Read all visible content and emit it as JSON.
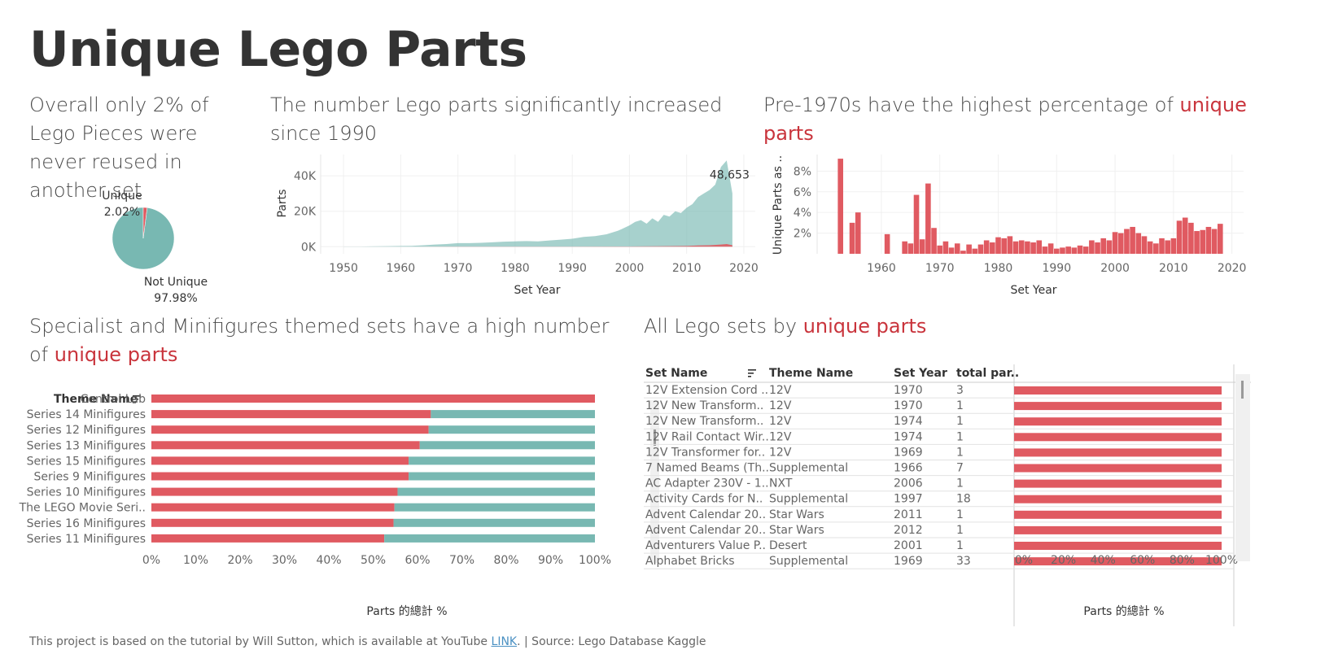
{
  "page": {
    "title": "Unique Lego Parts",
    "footer": {
      "text_before": "This project is based on the tutorial by Will Sutton, which is available at YouTube",
      "link": "LINK",
      "text_after": ".  |  Source: Lego Database Kaggle"
    }
  },
  "colors": {
    "unique": "#e05a61",
    "not_unique": "#78b8b2",
    "accent_text": "#c9343c"
  },
  "headings": {
    "pie": "Overall only 2% of Lego Pieces were never reused in another set",
    "area": "The number Lego parts significantly increased since 1990",
    "pct_pre": "Pre-1970s have the highest percentage of ",
    "pct_accent": "unique parts",
    "themes_pre": "Specialist and Minifigures themed sets have a high number of ",
    "themes_accent": "unique parts",
    "sets_pre": "All Lego sets by ",
    "sets_accent": "unique parts"
  },
  "chart_data": [
    {
      "type": "pie",
      "slices": [
        {
          "label": "Unique",
          "value": 2.02,
          "display": "2.02%",
          "color": "#e05a61"
        },
        {
          "label": "Not Unique",
          "value": 97.98,
          "display": "97.98%",
          "color": "#78b8b2"
        }
      ]
    },
    {
      "type": "area",
      "xlabel": "Set Year",
      "ylabel": "Parts",
      "xticks": [
        1950,
        1960,
        1970,
        1980,
        1990,
        2000,
        2010,
        2020
      ],
      "yticks": [
        {
          "v": 0,
          "label": "0K"
        },
        {
          "v": 20000,
          "label": "20K"
        },
        {
          "v": 40000,
          "label": "40K"
        }
      ],
      "xlim": [
        1946,
        2022
      ],
      "ylim": [
        -4000,
        52000
      ],
      "annotation": "48,653",
      "series": [
        {
          "color": "#78b8b2",
          "x": [
            1950,
            1953,
            1955,
            1958,
            1960,
            1962,
            1964,
            1966,
            1968,
            1970,
            1972,
            1974,
            1976,
            1978,
            1980,
            1982,
            1984,
            1986,
            1988,
            1990,
            1992,
            1994,
            1996,
            1998,
            2000,
            2001,
            2002,
            2003,
            2004,
            2005,
            2006,
            2007,
            2008,
            2009,
            2010,
            2011,
            2012,
            2013,
            2014,
            2015,
            2016,
            2017,
            2018
          ],
          "values": [
            50,
            100,
            200,
            300,
            400,
            500,
            800,
            1200,
            1500,
            2000,
            2000,
            2200,
            2500,
            2800,
            3000,
            3200,
            3000,
            3500,
            4000,
            4500,
            5500,
            6000,
            7000,
            9000,
            12000,
            14000,
            15000,
            13000,
            16000,
            14000,
            18000,
            17000,
            20000,
            19000,
            22000,
            24000,
            28000,
            30000,
            32000,
            35000,
            45000,
            48653,
            30000
          ]
        },
        {
          "color": "#e05a61",
          "x": [
            1950,
            1960,
            1970,
            1980,
            1990,
            2000,
            2005,
            2010,
            2012,
            2014,
            2016,
            2017,
            2018
          ],
          "values": [
            0,
            0,
            100,
            50,
            100,
            150,
            250,
            400,
            700,
            800,
            1200,
            1500,
            800
          ]
        }
      ]
    },
    {
      "type": "bar",
      "xlabel": "Set Year",
      "ylabel": "Unique Parts as ..",
      "xticks": [
        1960,
        1970,
        1980,
        1990,
        2000,
        2010,
        2020
      ],
      "yticks": [
        2,
        4,
        6,
        8
      ],
      "ytick_suffix": "%",
      "xlim": [
        1949,
        2022
      ],
      "ylim": [
        0,
        9.6
      ],
      "color": "#e05a61",
      "years": [
        1953,
        1955,
        1956,
        1957,
        1961,
        1963,
        1964,
        1965,
        1966,
        1967,
        1968,
        1969,
        1970,
        1971,
        1972,
        1973,
        1974,
        1975,
        1976,
        1977,
        1978,
        1979,
        1980,
        1981,
        1982,
        1983,
        1984,
        1985,
        1986,
        1987,
        1988,
        1989,
        1990,
        1991,
        1992,
        1993,
        1994,
        1995,
        1996,
        1997,
        1998,
        1999,
        2000,
        2001,
        2002,
        2003,
        2004,
        2005,
        2006,
        2007,
        2008,
        2009,
        2010,
        2011,
        2012,
        2013,
        2014,
        2015,
        2016,
        2017,
        2018
      ],
      "values": [
        9.2,
        3.0,
        4.0,
        0.0,
        1.9,
        0.0,
        1.2,
        1.0,
        5.7,
        1.4,
        6.8,
        2.5,
        0.8,
        1.2,
        0.6,
        1.0,
        0.3,
        0.9,
        0.5,
        0.9,
        1.3,
        1.1,
        1.6,
        1.5,
        1.7,
        1.2,
        1.3,
        1.2,
        1.1,
        1.3,
        0.7,
        1.0,
        0.5,
        0.6,
        0.7,
        0.6,
        0.8,
        0.7,
        1.3,
        1.1,
        1.5,
        1.3,
        2.1,
        2.0,
        2.4,
        2.6,
        2.0,
        1.7,
        1.2,
        1.0,
        1.5,
        1.3,
        1.5,
        3.2,
        3.5,
        3.0,
        2.2,
        2.3,
        2.6,
        2.4,
        2.9
      ]
    },
    {
      "type": "bar",
      "orientation": "horizontal-stacked-100",
      "ylabel": "Theme Name",
      "xlabel": "Parts 的總計 %",
      "xticks": [
        "0%",
        "10%",
        "20%",
        "30%",
        "40%",
        "50%",
        "60%",
        "70%",
        "80%",
        "90%",
        "100%"
      ],
      "categories": [
        "Control Lab",
        "Series 14 Minifigures",
        "Series 12 Minifigures",
        "Series 13 Minifigures",
        "Series 15 Minifigures",
        "Series 9 Minifigures",
        "Series 10 Minifigures",
        "The LEGO Movie Seri..",
        "Series 16 Minifigures",
        "Series 11 Minifigures"
      ],
      "series": [
        {
          "color": "#e05a61",
          "values": [
            100,
            63,
            62.5,
            60.5,
            58,
            58,
            55.5,
            54.8,
            54.6,
            52.5
          ]
        },
        {
          "color": "#78b8b2",
          "values": [
            0,
            37,
            37.5,
            39.5,
            42,
            42,
            44.5,
            45.2,
            45.4,
            47.5
          ]
        }
      ]
    },
    {
      "type": "table",
      "columns": [
        "Set Name",
        "Theme Name",
        "Set Year",
        "total par.."
      ],
      "rows": [
        [
          "12V Extension Cord ..",
          "12V",
          "1970",
          "3"
        ],
        [
          "12V New Transform..",
          "12V",
          "1970",
          "1"
        ],
        [
          "12V New Transform..",
          "12V",
          "1974",
          "1"
        ],
        [
          "12V Rail Contact Wir..",
          "12V",
          "1974",
          "1"
        ],
        [
          "12V Transformer for..",
          "12V",
          "1969",
          "1"
        ],
        [
          "7 Named Beams (Th..",
          "Supplemental",
          "1966",
          "7"
        ],
        [
          "AC Adapter 230V - 1..",
          "NXT",
          "2006",
          "1"
        ],
        [
          "Activity Cards for N..",
          "Supplemental",
          "1997",
          "18"
        ],
        [
          "Advent Calendar 20..",
          "Star Wars",
          "2011",
          "1"
        ],
        [
          "Advent Calendar 20..",
          "Star Wars",
          "2012",
          "1"
        ],
        [
          "Adventurers Value P..",
          "Desert",
          "2001",
          "1"
        ],
        [
          "Alphabet Bricks",
          "Supplemental",
          "1969",
          "33"
        ]
      ],
      "bar_values": [
        100,
        100,
        100,
        100,
        100,
        100,
        100,
        100,
        100,
        100,
        100,
        100
      ],
      "bar_color": "#e05a61",
      "xticks": [
        "0%",
        "20%",
        "40%",
        "60%",
        "80%",
        "100%"
      ],
      "xlabel": "Parts 的總計 %"
    }
  ]
}
